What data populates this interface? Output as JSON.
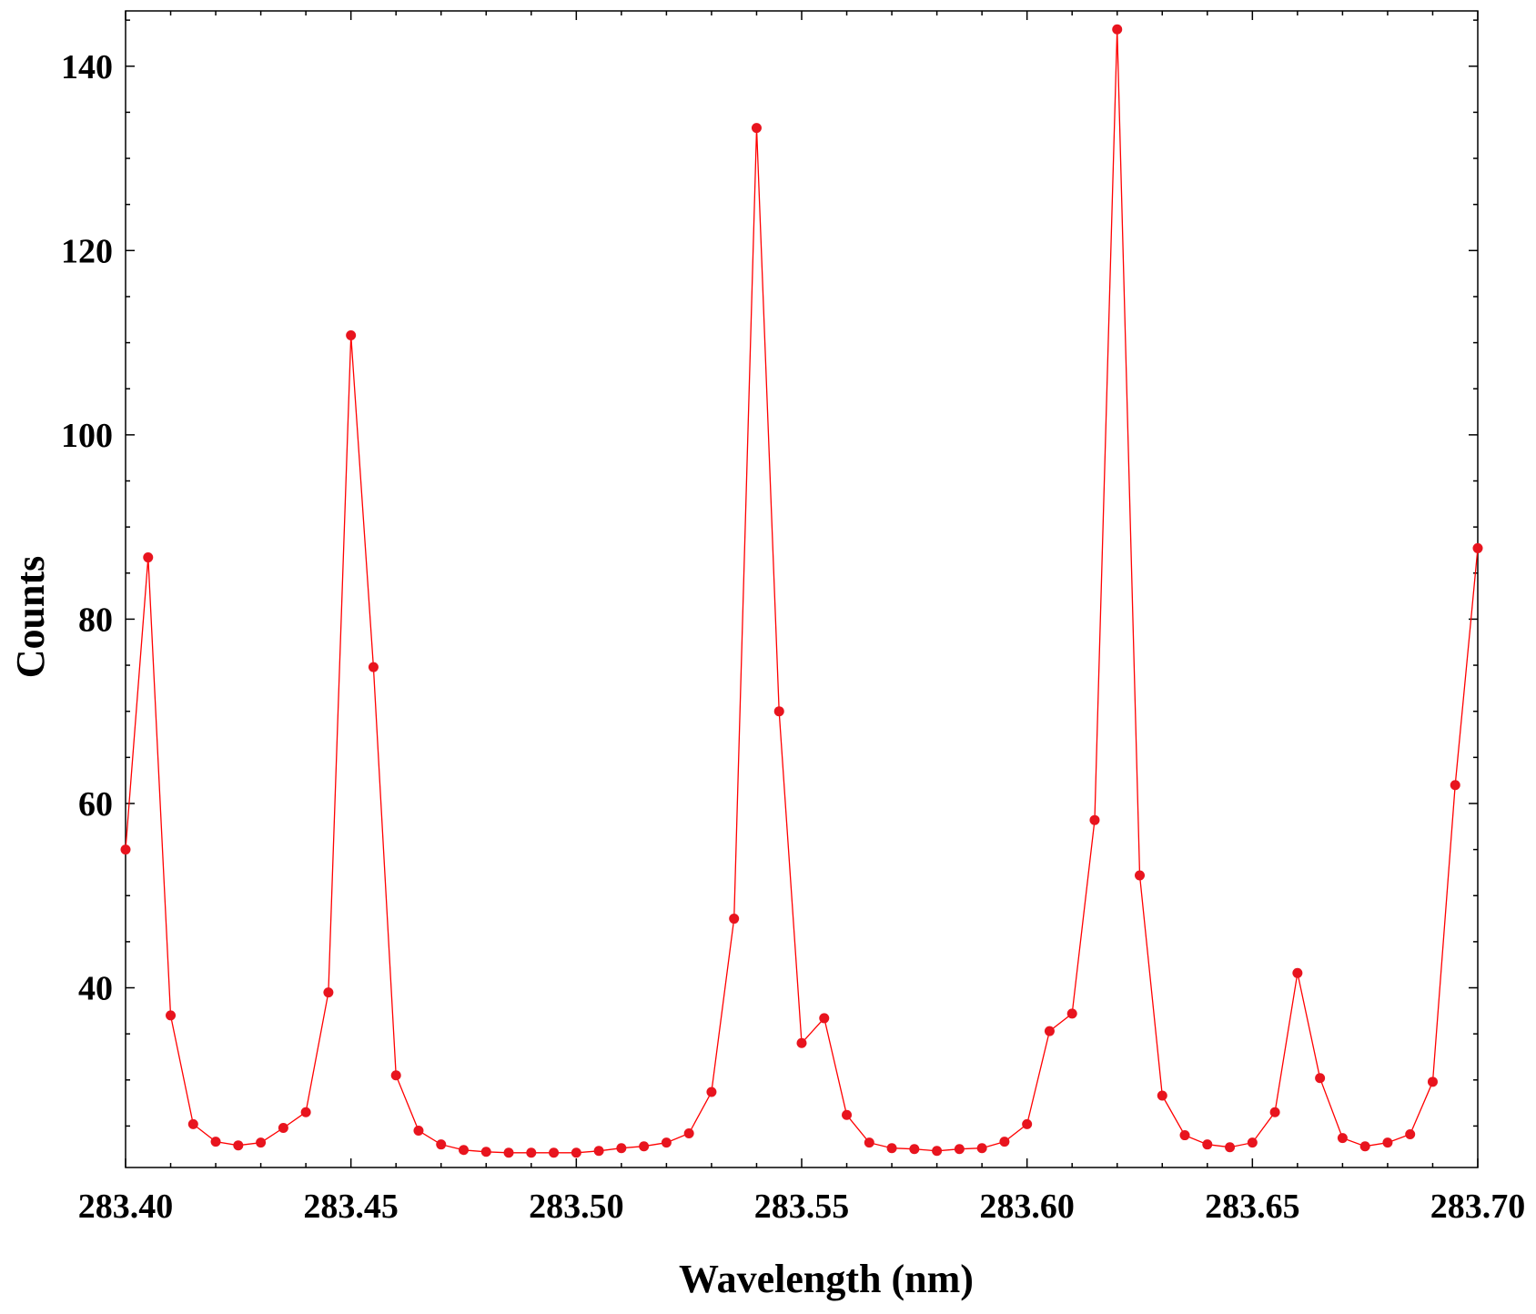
{
  "chart_data": {
    "type": "line",
    "title": "",
    "xlabel": "Wavelength (nm)",
    "ylabel": "Counts",
    "xlim": [
      283.4,
      283.7
    ],
    "ylim": [
      20.5,
      146
    ],
    "x_ticks": [
      283.4,
      283.45,
      283.5,
      283.55,
      283.6,
      283.65,
      283.7
    ],
    "x_tick_labels": [
      "283.40",
      "283.45",
      "283.50",
      "283.55",
      "283.60",
      "283.65",
      "283.70"
    ],
    "y_ticks": [
      40,
      60,
      80,
      100,
      120,
      140
    ],
    "y_tick_labels": [
      "40",
      "60",
      "80",
      "100",
      "120",
      "140"
    ],
    "grid": false,
    "legend": "none",
    "colors": {
      "series": "#ff0000",
      "marker": "#e8141e",
      "axis": "#000000"
    },
    "series": [
      {
        "marker": "circle",
        "x": [
          283.4,
          283.405,
          283.41,
          283.415,
          283.42,
          283.425,
          283.43,
          283.435,
          283.44,
          283.445,
          283.45,
          283.455,
          283.46,
          283.465,
          283.47,
          283.475,
          283.48,
          283.485,
          283.49,
          283.495,
          283.5,
          283.505,
          283.51,
          283.515,
          283.52,
          283.525,
          283.53,
          283.535,
          283.54,
          283.545,
          283.55,
          283.555,
          283.56,
          283.565,
          283.57,
          283.575,
          283.58,
          283.585,
          283.59,
          283.595,
          283.6,
          283.605,
          283.61,
          283.615,
          283.62,
          283.625,
          283.63,
          283.635,
          283.64,
          283.645,
          283.65,
          283.655,
          283.66,
          283.665,
          283.67,
          283.675,
          283.68,
          283.685,
          283.69,
          283.695,
          283.7
        ],
        "y": [
          55.0,
          86.7,
          37.0,
          25.2,
          23.3,
          22.9,
          23.2,
          24.8,
          26.5,
          39.5,
          110.8,
          74.8,
          30.5,
          24.5,
          23.0,
          22.4,
          22.2,
          22.1,
          22.1,
          22.1,
          22.1,
          22.3,
          22.6,
          22.8,
          23.2,
          24.2,
          28.7,
          47.5,
          133.3,
          70.0,
          34.0,
          36.7,
          26.2,
          23.2,
          22.6,
          22.5,
          22.3,
          22.5,
          22.6,
          23.3,
          25.2,
          35.3,
          37.2,
          58.2,
          144.0,
          52.2,
          28.3,
          24.0,
          23.0,
          22.7,
          23.2,
          26.5,
          41.6,
          30.2,
          23.7,
          22.8,
          23.2,
          24.1,
          29.8,
          62.0,
          87.7
        ]
      }
    ]
  }
}
